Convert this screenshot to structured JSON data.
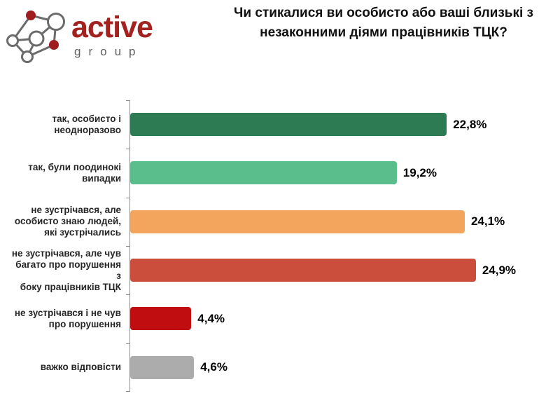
{
  "header": {
    "logo": {
      "brand": "active",
      "subtext": "group",
      "brand_color": "#A3211F",
      "icon": "network-graph-icon"
    },
    "title_line1": "Чи стикалися ви особисто або ваші близькі з",
    "title_line2": "незаконними діями працівників ТЦК?"
  },
  "chart_data": {
    "type": "bar",
    "orientation": "horizontal",
    "title": "Чи стикалися ви особисто або ваші близькі з незаконними діями працівників ТЦК?",
    "categories": [
      "так, особисто і неодноразово",
      "так, були поодинокі випадки",
      "не зустрічався, але особисто знаю людей, які зустрічались",
      "не зустрічався, але чув багато про порушення з боку працівників ТЦК",
      "не зустрічався і не чув про порушення",
      "важко відповісти"
    ],
    "category_lines": [
      [
        "так, особисто і",
        "неодноразово"
      ],
      [
        "так, були поодинокі",
        "випадки"
      ],
      [
        "не зустрічався, але",
        "особисто знаю людей,",
        "які зустрічались"
      ],
      [
        "не зустрічався, але чув",
        "багато про порушення з",
        "боку працівників ТЦК"
      ],
      [
        "не зустрічався і не чув",
        "про порушення"
      ],
      [
        "важко відповісти"
      ]
    ],
    "values": [
      22.8,
      19.2,
      24.1,
      24.9,
      4.4,
      4.6
    ],
    "value_labels": [
      "22,8%",
      "19,2%",
      "24,1%",
      "24,9%",
      "4,4%",
      "4,6%"
    ],
    "colors": [
      "#2D7B52",
      "#5ABE8C",
      "#F3A55E",
      "#CB4E3C",
      "#C00D10",
      "#ACACAC"
    ],
    "xlim": [
      0,
      30
    ],
    "grid": false,
    "legend": false,
    "axis_color": "#8F8F8F"
  }
}
